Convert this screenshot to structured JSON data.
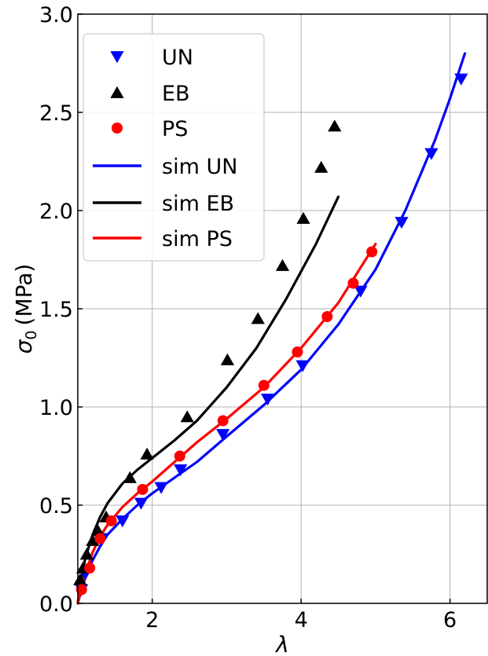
{
  "chart_data": {
    "type": "line",
    "title": "",
    "xlabel": "λ",
    "ylabel": "σ0 (MPa)",
    "ylabel_main": "σ",
    "ylabel_sub": "0",
    "ylabel_unit": "(MPa)",
    "xlim": [
      1.0,
      6.5
    ],
    "ylim": [
      0.0,
      3.0
    ],
    "xticks": [
      2,
      4,
      6
    ],
    "xtick_labels": [
      "2",
      "4",
      "6"
    ],
    "yticks": [
      0.0,
      0.5,
      1.0,
      1.5,
      2.0,
      2.5,
      3.0
    ],
    "ytick_labels": [
      "0.0",
      "0.5",
      "1.0",
      "1.5",
      "2.0",
      "2.5",
      "3.0"
    ],
    "grid": true,
    "legend_position": "top-left",
    "series": [
      {
        "name": "UN",
        "kind": "scatter",
        "marker": "triangle-down",
        "color": "#0000ff",
        "x": [
          1.05,
          1.1,
          1.32,
          1.6,
          1.85,
          2.12,
          2.38,
          2.95,
          3.55,
          4.02,
          4.8,
          5.35,
          5.75,
          6.15
        ],
        "y": [
          0.07,
          0.15,
          0.33,
          0.42,
          0.51,
          0.59,
          0.68,
          0.86,
          1.04,
          1.21,
          1.59,
          1.94,
          2.29,
          2.67
        ]
      },
      {
        "name": "EB",
        "kind": "scatter",
        "marker": "triangle-up",
        "color": "#000000",
        "x": [
          1.03,
          1.07,
          1.12,
          1.2,
          1.27,
          1.38,
          1.7,
          1.93,
          2.47,
          3.01,
          3.42,
          3.75,
          4.03,
          4.27,
          4.45
        ],
        "y": [
          0.12,
          0.18,
          0.25,
          0.32,
          0.37,
          0.44,
          0.64,
          0.76,
          0.95,
          1.24,
          1.45,
          1.72,
          1.96,
          2.22,
          2.43
        ]
      },
      {
        "name": "PS",
        "kind": "scatter",
        "marker": "circle",
        "color": "#ff0000",
        "x": [
          1.05,
          1.16,
          1.3,
          1.45,
          1.87,
          2.37,
          2.95,
          3.5,
          3.95,
          4.35,
          4.7,
          4.95
        ],
        "y": [
          0.07,
          0.18,
          0.33,
          0.42,
          0.58,
          0.75,
          0.93,
          1.11,
          1.28,
          1.46,
          1.63,
          1.79
        ]
      },
      {
        "name": "sim UN",
        "kind": "line",
        "color": "#0000ff",
        "x": [
          1.0,
          1.05,
          1.1,
          1.2,
          1.3,
          1.4,
          1.6,
          1.8,
          2.0,
          2.3,
          2.6,
          3.0,
          3.5,
          4.0,
          4.5,
          5.0,
          5.4,
          5.8,
          6.0,
          6.2
        ],
        "y": [
          0.0,
          0.07,
          0.13,
          0.22,
          0.29,
          0.35,
          0.43,
          0.5,
          0.56,
          0.64,
          0.72,
          0.85,
          1.01,
          1.19,
          1.42,
          1.7,
          2.0,
          2.36,
          2.57,
          2.8
        ]
      },
      {
        "name": "sim EB",
        "kind": "line",
        "color": "#000000",
        "x": [
          1.0,
          1.05,
          1.1,
          1.2,
          1.3,
          1.4,
          1.6,
          1.8,
          2.0,
          2.3,
          2.6,
          3.0,
          3.4,
          3.8,
          4.2,
          4.5
        ],
        "y": [
          0.0,
          0.13,
          0.23,
          0.35,
          0.44,
          0.51,
          0.61,
          0.68,
          0.74,
          0.83,
          0.93,
          1.1,
          1.3,
          1.55,
          1.83,
          2.07
        ]
      },
      {
        "name": "sim PS",
        "kind": "line",
        "color": "#ff0000",
        "x": [
          1.0,
          1.05,
          1.1,
          1.2,
          1.3,
          1.4,
          1.6,
          1.8,
          2.0,
          2.3,
          2.6,
          3.0,
          3.5,
          4.0,
          4.5,
          5.0
        ],
        "y": [
          0.0,
          0.08,
          0.15,
          0.26,
          0.34,
          0.4,
          0.49,
          0.56,
          0.62,
          0.72,
          0.82,
          0.94,
          1.1,
          1.3,
          1.53,
          1.83
        ]
      }
    ]
  },
  "colors": {
    "grid": "#b0b0b0",
    "legend_border": "#cccccc",
    "axis": "#000000"
  }
}
